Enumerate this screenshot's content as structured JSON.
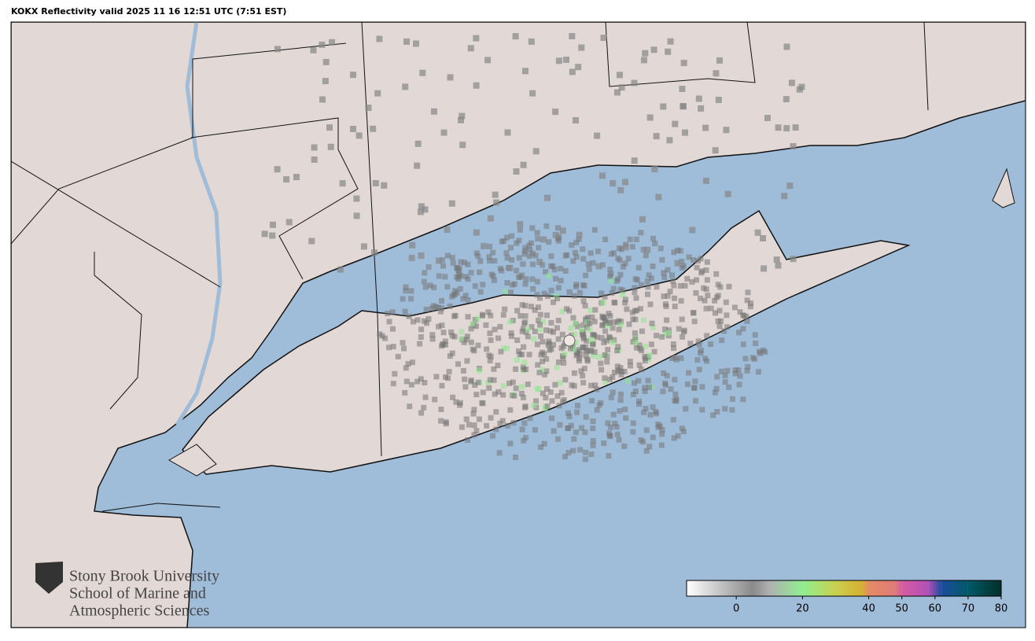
{
  "title": "KOKX Reflectivity valid 2025 11 16 12:51 UTC (7:51 EST)",
  "logo": {
    "lines": [
      "Stony Brook University",
      "School of Marine and",
      "Atmospheric Sciences"
    ]
  },
  "colorbar": {
    "lim": [
      -15,
      80
    ],
    "ticks": [
      0,
      20,
      40,
      50,
      60,
      70,
      80
    ],
    "stops": [
      {
        "value": -15,
        "color": "#ffffff"
      },
      {
        "value": 5,
        "color": "#8a8a8a"
      },
      {
        "value": 10,
        "color": "#b0b0b0"
      },
      {
        "value": 20,
        "color": "#90ee90"
      },
      {
        "value": 30,
        "color": "#c8d050"
      },
      {
        "value": 38,
        "color": "#d8b030"
      },
      {
        "value": 40,
        "color": "#e48c64"
      },
      {
        "value": 48,
        "color": "#e07a78"
      },
      {
        "value": 50,
        "color": "#d85ca0"
      },
      {
        "value": 58,
        "color": "#b050b8"
      },
      {
        "value": 62,
        "color": "#1c4c9c"
      },
      {
        "value": 70,
        "color": "#005a68"
      },
      {
        "value": 80,
        "color": "#003028"
      }
    ]
  }
}
